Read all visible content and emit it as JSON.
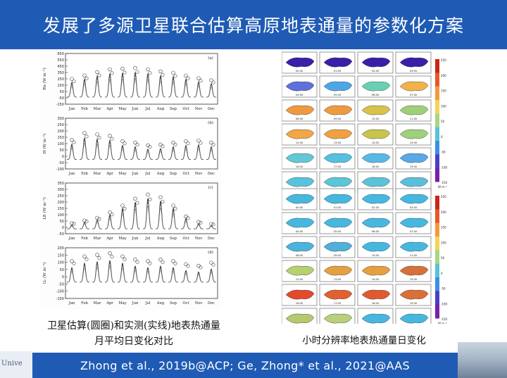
{
  "slide": {
    "title": "发展了多源卫星联合估算高原地表通量的参数化方案",
    "left_caption_line1": "卫星估算(圆圈)和实测(实线)地表热通量",
    "left_caption_line2": "月平均日变化对比",
    "right_caption": "小时分辨率地表热通量日变化",
    "footer_citation": "Zhong et al., 2019b@ACP; Ge, Zhong* et al., 2021@AAS",
    "logo_text": "Unive",
    "colors": {
      "title_bar": "#1f5bb4",
      "footer_bar": "#1f5bb4",
      "title_text": "#ffffff"
    }
  },
  "chart_data": [
    {
      "type": "line",
      "panel": "(a)",
      "ylabel": "Rn (W m⁻²)",
      "ylim": [
        -150,
        650
      ],
      "yticks": [
        -150,
        -50,
        50,
        150,
        250,
        350,
        450,
        550,
        650
      ],
      "categories": [
        "Jan",
        "Feb",
        "Mar",
        "Apr",
        "May",
        "Jun",
        "Jul",
        "Aug",
        "Sep",
        "Oct",
        "Nov",
        "Dec"
      ],
      "series": [
        {
          "values": [
            230,
            280,
            330,
            370,
            380,
            390,
            370,
            340,
            320,
            280,
            240,
            210
          ]
        }
      ]
    },
    {
      "type": "line",
      "panel": "(b)",
      "ylabel": "H (W m⁻²)",
      "ylim": [
        -100,
        300
      ],
      "yticks": [
        -100,
        -50,
        0,
        50,
        100,
        150,
        200,
        250,
        300
      ],
      "categories": [
        "Jan",
        "Feb",
        "Mar",
        "Apr",
        "May",
        "Jun",
        "Jul",
        "Aug",
        "Sep",
        "Oct",
        "Nov",
        "Dec"
      ],
      "series": [
        {
          "values": [
            120,
            170,
            160,
            150,
            110,
            100,
            80,
            85,
            100,
            110,
            115,
            100
          ]
        }
      ]
    },
    {
      "type": "line",
      "panel": "(c)",
      "ylabel": "LE (W m⁻²)",
      "ylim": [
        -50,
        350
      ],
      "yticks": [
        -50,
        0,
        50,
        100,
        150,
        200,
        250,
        300,
        350
      ],
      "categories": [
        "Jan",
        "Feb",
        "Mar",
        "Apr",
        "May",
        "Jun",
        "Jul",
        "Aug",
        "Sep",
        "Oct",
        "Nov",
        "Dec"
      ],
      "series": [
        {
          "values": [
            30,
            50,
            70,
            110,
            160,
            210,
            240,
            220,
            160,
            80,
            40,
            25
          ]
        }
      ]
    },
    {
      "type": "line",
      "panel": "(d)",
      "ylabel": "G₀ (W m⁻²)",
      "ylim": [
        -150,
        200
      ],
      "yticks": [
        -150,
        -100,
        -50,
        0,
        50,
        100,
        150,
        200
      ],
      "categories": [
        "Jan",
        "Feb",
        "Mar",
        "Apr",
        "May",
        "Jun",
        "Jul",
        "Aug",
        "Sep",
        "Oct",
        "Nov",
        "Dec"
      ],
      "series": [
        {
          "values": [
            100,
            130,
            140,
            150,
            130,
            110,
            100,
            110,
            100,
            80,
            70,
            90
          ]
        }
      ]
    }
  ],
  "maps": {
    "top_colorbar_ticks": [
      "250",
      "200",
      "150",
      "100",
      "50",
      "0",
      "-50",
      "-100",
      "-150"
    ],
    "top_colorbar_unit": "W m⁻²",
    "bottom_colorbar_ticks": [
      "250",
      "200",
      "150",
      "100",
      "50",
      "0",
      "-50",
      "-100",
      "-150"
    ],
    "bottom_colorbar_unit": "W m⁻²",
    "top_times": [
      "00:00",
      "01:00",
      "02:00",
      "03:00",
      "04:00",
      "05:00",
      "06:00",
      "07:00",
      "08:00",
      "09:00",
      "10:00",
      "11:00",
      "12:00",
      "13:00",
      "14:00",
      "15:00",
      "16:00",
      "17:00",
      "18:00",
      "19:00",
      "20:00",
      "21:00",
      "22:00",
      "23:00"
    ],
    "bottom_times": [
      "00:00",
      "01:00",
      "02:00",
      "03:00",
      "04:00",
      "05:00",
      "06:00",
      "07:00",
      "08:00",
      "09:00",
      "10:00",
      "11:00",
      "12:00",
      "13:00",
      "14:00",
      "15:00",
      "16:00",
      "17:00",
      "18:00",
      "19:00",
      "20:00",
      "21:00",
      "22:00",
      "23:00"
    ],
    "top_palette": [
      "#3a1fa8",
      "#3a1fa8",
      "#3a1fa8",
      "#3a1fa8",
      "#5f6fdc",
      "#4fa6e6",
      "#6ad0b4",
      "#f0b24a",
      "#f09a40",
      "#ef9a3e",
      "#d8c24a",
      "#9fd078",
      "#f2a646",
      "#f0a040",
      "#c8c44c",
      "#9fd07c",
      "#63c7d8",
      "#56c0e0",
      "#58b9e6",
      "#5aa8e6",
      "#59c3dd",
      "#5ac6d8",
      "#5bc3d8",
      "#5bbfdb"
    ],
    "bottom_palette": [
      "#46b8e0",
      "#46b8e0",
      "#46b8e0",
      "#46b8e0",
      "#46b8e0",
      "#46b8e0",
      "#46b8e0",
      "#46b8e0",
      "#4ab4de",
      "#50b0da",
      "#46b8e0",
      "#46b8e0",
      "#b7d070",
      "#e4a040",
      "#e6a040",
      "#d8703a",
      "#e24a2a",
      "#e06030",
      "#e05a30",
      "#d87038",
      "#b6c870",
      "#b8d07c",
      "#48b6e0",
      "#46b8e0"
    ]
  }
}
